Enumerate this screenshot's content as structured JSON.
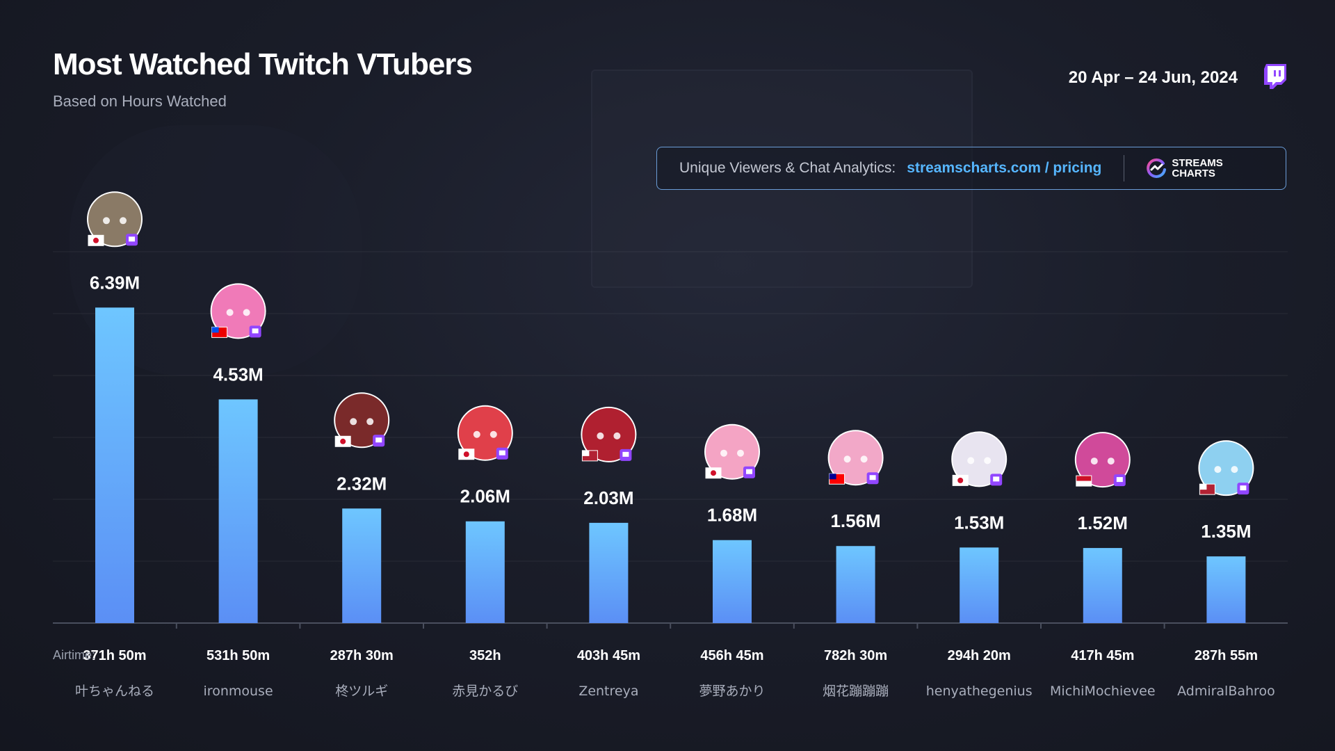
{
  "header": {
    "title": "Most Watched Twitch VTubers",
    "subtitle": "Based on Hours Watched",
    "date_range": "20 Apr – 24 Jun, 2024"
  },
  "promo": {
    "label": "Unique Viewers & Chat Analytics:",
    "link": "streamscharts.com / pricing",
    "brand_line1": "STREAMS",
    "brand_line2": "CHARTS"
  },
  "colors": {
    "bar_top": "#6ec6ff",
    "bar_bottom": "#5b8ff5",
    "twitch": "#9146ff",
    "link": "#56b6ff"
  },
  "chart_data": {
    "type": "bar",
    "title": "Most Watched Twitch VTubers",
    "ylabel": "Hours Watched",
    "unit": "M",
    "ylim": [
      0,
      7
    ],
    "grid": true,
    "airtime_prefix": "Airtime:",
    "categories": [
      "叶ちゃんねる",
      "ironmouse",
      "柊ツルギ",
      "赤見かるび",
      "Zentreya",
      "夢野あかり",
      "烟花蹦蹦蹦",
      "henyathegenius",
      "MichiMochievee",
      "AdmiralBahroo"
    ],
    "values": [
      6.39,
      4.53,
      2.32,
      2.06,
      2.03,
      1.68,
      1.56,
      1.53,
      1.52,
      1.35
    ],
    "value_labels": [
      "6.39M",
      "4.53M",
      "2.32M",
      "2.06M",
      "2.03M",
      "1.68M",
      "1.56M",
      "1.53M",
      "1.52M",
      "1.35M"
    ],
    "airtime": [
      "371h 50m",
      "531h 50m",
      "287h 30m",
      "352h",
      "403h 45m",
      "456h 45m",
      "782h 30m",
      "294h 20m",
      "417h 45m",
      "287h 55m"
    ],
    "avatars": [
      {
        "flag": "JP",
        "icon": "avatar-anime-boy",
        "color": "#8a7a66"
      },
      {
        "flag": "PR",
        "icon": "avatar-pink-hair",
        "color": "#f07ab8"
      },
      {
        "flag": "JP",
        "icon": "avatar-dark-red-hair",
        "color": "#7a2a2a"
      },
      {
        "flag": "JP",
        "icon": "avatar-red-hair",
        "color": "#e0404a"
      },
      {
        "flag": "US",
        "icon": "avatar-red-white-hair",
        "color": "#b02030"
      },
      {
        "flag": "JP",
        "icon": "avatar-pink-bob",
        "color": "#f4a4c4"
      },
      {
        "flag": "TW",
        "icon": "avatar-pink-twintail",
        "color": "#f2a8c8"
      },
      {
        "flag": "JP",
        "icon": "avatar-white-creature",
        "color": "#e8e4f0"
      },
      {
        "flag": "ID",
        "icon": "avatar-pink-spiral",
        "color": "#d04a9a"
      },
      {
        "flag": "US",
        "icon": "avatar-blue-ghost",
        "color": "#8ed0f0"
      }
    ]
  }
}
